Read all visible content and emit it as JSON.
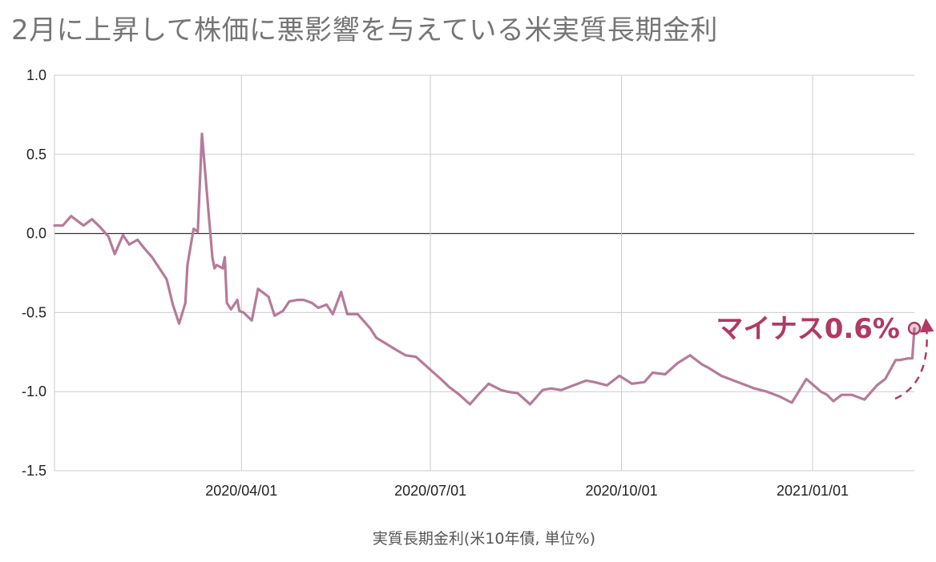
{
  "chart_data": {
    "type": "line",
    "title": "2月に上昇して株価に悪影響を与えている米実質長期金利",
    "xlabel": "実質長期金利(米10年債, 単位%)",
    "ylabel": "",
    "ylim": [
      -1.5,
      1.0
    ],
    "yticks": [
      "1.0",
      "0.5",
      "0.0",
      "-0.5",
      "-1.0",
      "-1.5"
    ],
    "xlim": [
      "2020-01-02",
      "2021-02-19"
    ],
    "xticks": [
      {
        "date": "2020-04-01",
        "label": "2020/04/01"
      },
      {
        "date": "2020-07-01",
        "label": "2020/07/01"
      },
      {
        "date": "2020-10-01",
        "label": "2020/10/01"
      },
      {
        "date": "2021-01-01",
        "label": "2021/01/01"
      }
    ],
    "grid": true,
    "line_color": "#b67b99",
    "annotation": {
      "text": "マイナス0.6%",
      "color": "#b03a62",
      "date": "2021-02-19",
      "value": -0.6
    },
    "series": [
      {
        "name": "",
        "x": [
          "2020-01-02",
          "2020-01-06",
          "2020-01-10",
          "2020-01-14",
          "2020-01-16",
          "2020-01-20",
          "2020-01-24",
          "2020-01-28",
          "2020-01-31",
          "2020-02-04",
          "2020-02-07",
          "2020-02-11",
          "2020-02-14",
          "2020-02-18",
          "2020-02-21",
          "2020-02-25",
          "2020-02-28",
          "2020-03-02",
          "2020-03-05",
          "2020-03-06",
          "2020-03-09",
          "2020-03-11",
          "2020-03-13",
          "2020-03-16",
          "2020-03-18",
          "2020-03-19",
          "2020-03-20",
          "2020-03-23",
          "2020-03-24",
          "2020-03-25",
          "2020-03-26",
          "2020-03-27",
          "2020-03-30",
          "2020-03-31",
          "2020-04-02",
          "2020-04-06",
          "2020-04-09",
          "2020-04-14",
          "2020-04-17",
          "2020-04-21",
          "2020-04-24",
          "2020-04-28",
          "2020-05-01",
          "2020-05-05",
          "2020-05-08",
          "2020-05-12",
          "2020-05-15",
          "2020-05-19",
          "2020-05-22",
          "2020-05-27",
          "2020-06-02",
          "2020-06-05",
          "2020-06-10",
          "2020-06-15",
          "2020-06-19",
          "2020-06-24",
          "2020-06-30",
          "2020-07-06",
          "2020-07-10",
          "2020-07-15",
          "2020-07-20",
          "2020-07-24",
          "2020-07-29",
          "2020-08-04",
          "2020-08-07",
          "2020-08-12",
          "2020-08-18",
          "2020-08-24",
          "2020-08-28",
          "2020-09-02",
          "2020-09-08",
          "2020-09-14",
          "2020-09-18",
          "2020-09-24",
          "2020-09-30",
          "2020-10-06",
          "2020-10-12",
          "2020-10-16",
          "2020-10-22",
          "2020-10-28",
          "2020-11-03",
          "2020-11-09",
          "2020-11-12",
          "2020-11-18",
          "2020-11-24",
          "2020-11-30",
          "2020-12-04",
          "2020-12-10",
          "2020-12-16",
          "2020-12-22",
          "2020-12-29",
          "2021-01-05",
          "2021-01-08",
          "2021-01-11",
          "2021-01-15",
          "2021-01-20",
          "2021-01-26",
          "2021-02-01",
          "2021-02-05",
          "2021-02-10",
          "2021-02-12",
          "2021-02-16",
          "2021-02-18",
          "2021-02-19"
        ],
        "values": [
          0.05,
          0.05,
          0.11,
          0.07,
          0.05,
          0.09,
          0.04,
          -0.02,
          -0.13,
          -0.01,
          -0.07,
          -0.04,
          -0.09,
          -0.15,
          -0.21,
          -0.29,
          -0.45,
          -0.57,
          -0.44,
          -0.2,
          0.03,
          0.01,
          0.63,
          0.16,
          -0.15,
          -0.22,
          -0.2,
          -0.22,
          -0.15,
          -0.44,
          -0.46,
          -0.48,
          -0.42,
          -0.49,
          -0.5,
          -0.55,
          -0.35,
          -0.4,
          -0.52,
          -0.49,
          -0.43,
          -0.42,
          -0.42,
          -0.44,
          -0.47,
          -0.45,
          -0.51,
          -0.37,
          -0.51,
          -0.51,
          -0.6,
          -0.66,
          -0.7,
          -0.74,
          -0.77,
          -0.78,
          -0.85,
          -0.92,
          -0.97,
          -1.02,
          -1.08,
          -1.02,
          -0.95,
          -0.99,
          -1.0,
          -1.01,
          -1.08,
          -0.99,
          -0.98,
          -0.99,
          -0.96,
          -0.93,
          -0.94,
          -0.96,
          -0.9,
          -0.95,
          -0.94,
          -0.88,
          -0.89,
          -0.82,
          -0.77,
          -0.83,
          -0.85,
          -0.9,
          -0.93,
          -0.96,
          -0.98,
          -1.0,
          -1.03,
          -1.07,
          -0.92,
          -1.0,
          -1.02,
          -1.06,
          -1.02,
          -1.02,
          -1.05,
          -0.96,
          -0.92,
          -0.8,
          -0.8,
          -0.79,
          -0.79,
          -0.6
        ]
      }
    ]
  }
}
